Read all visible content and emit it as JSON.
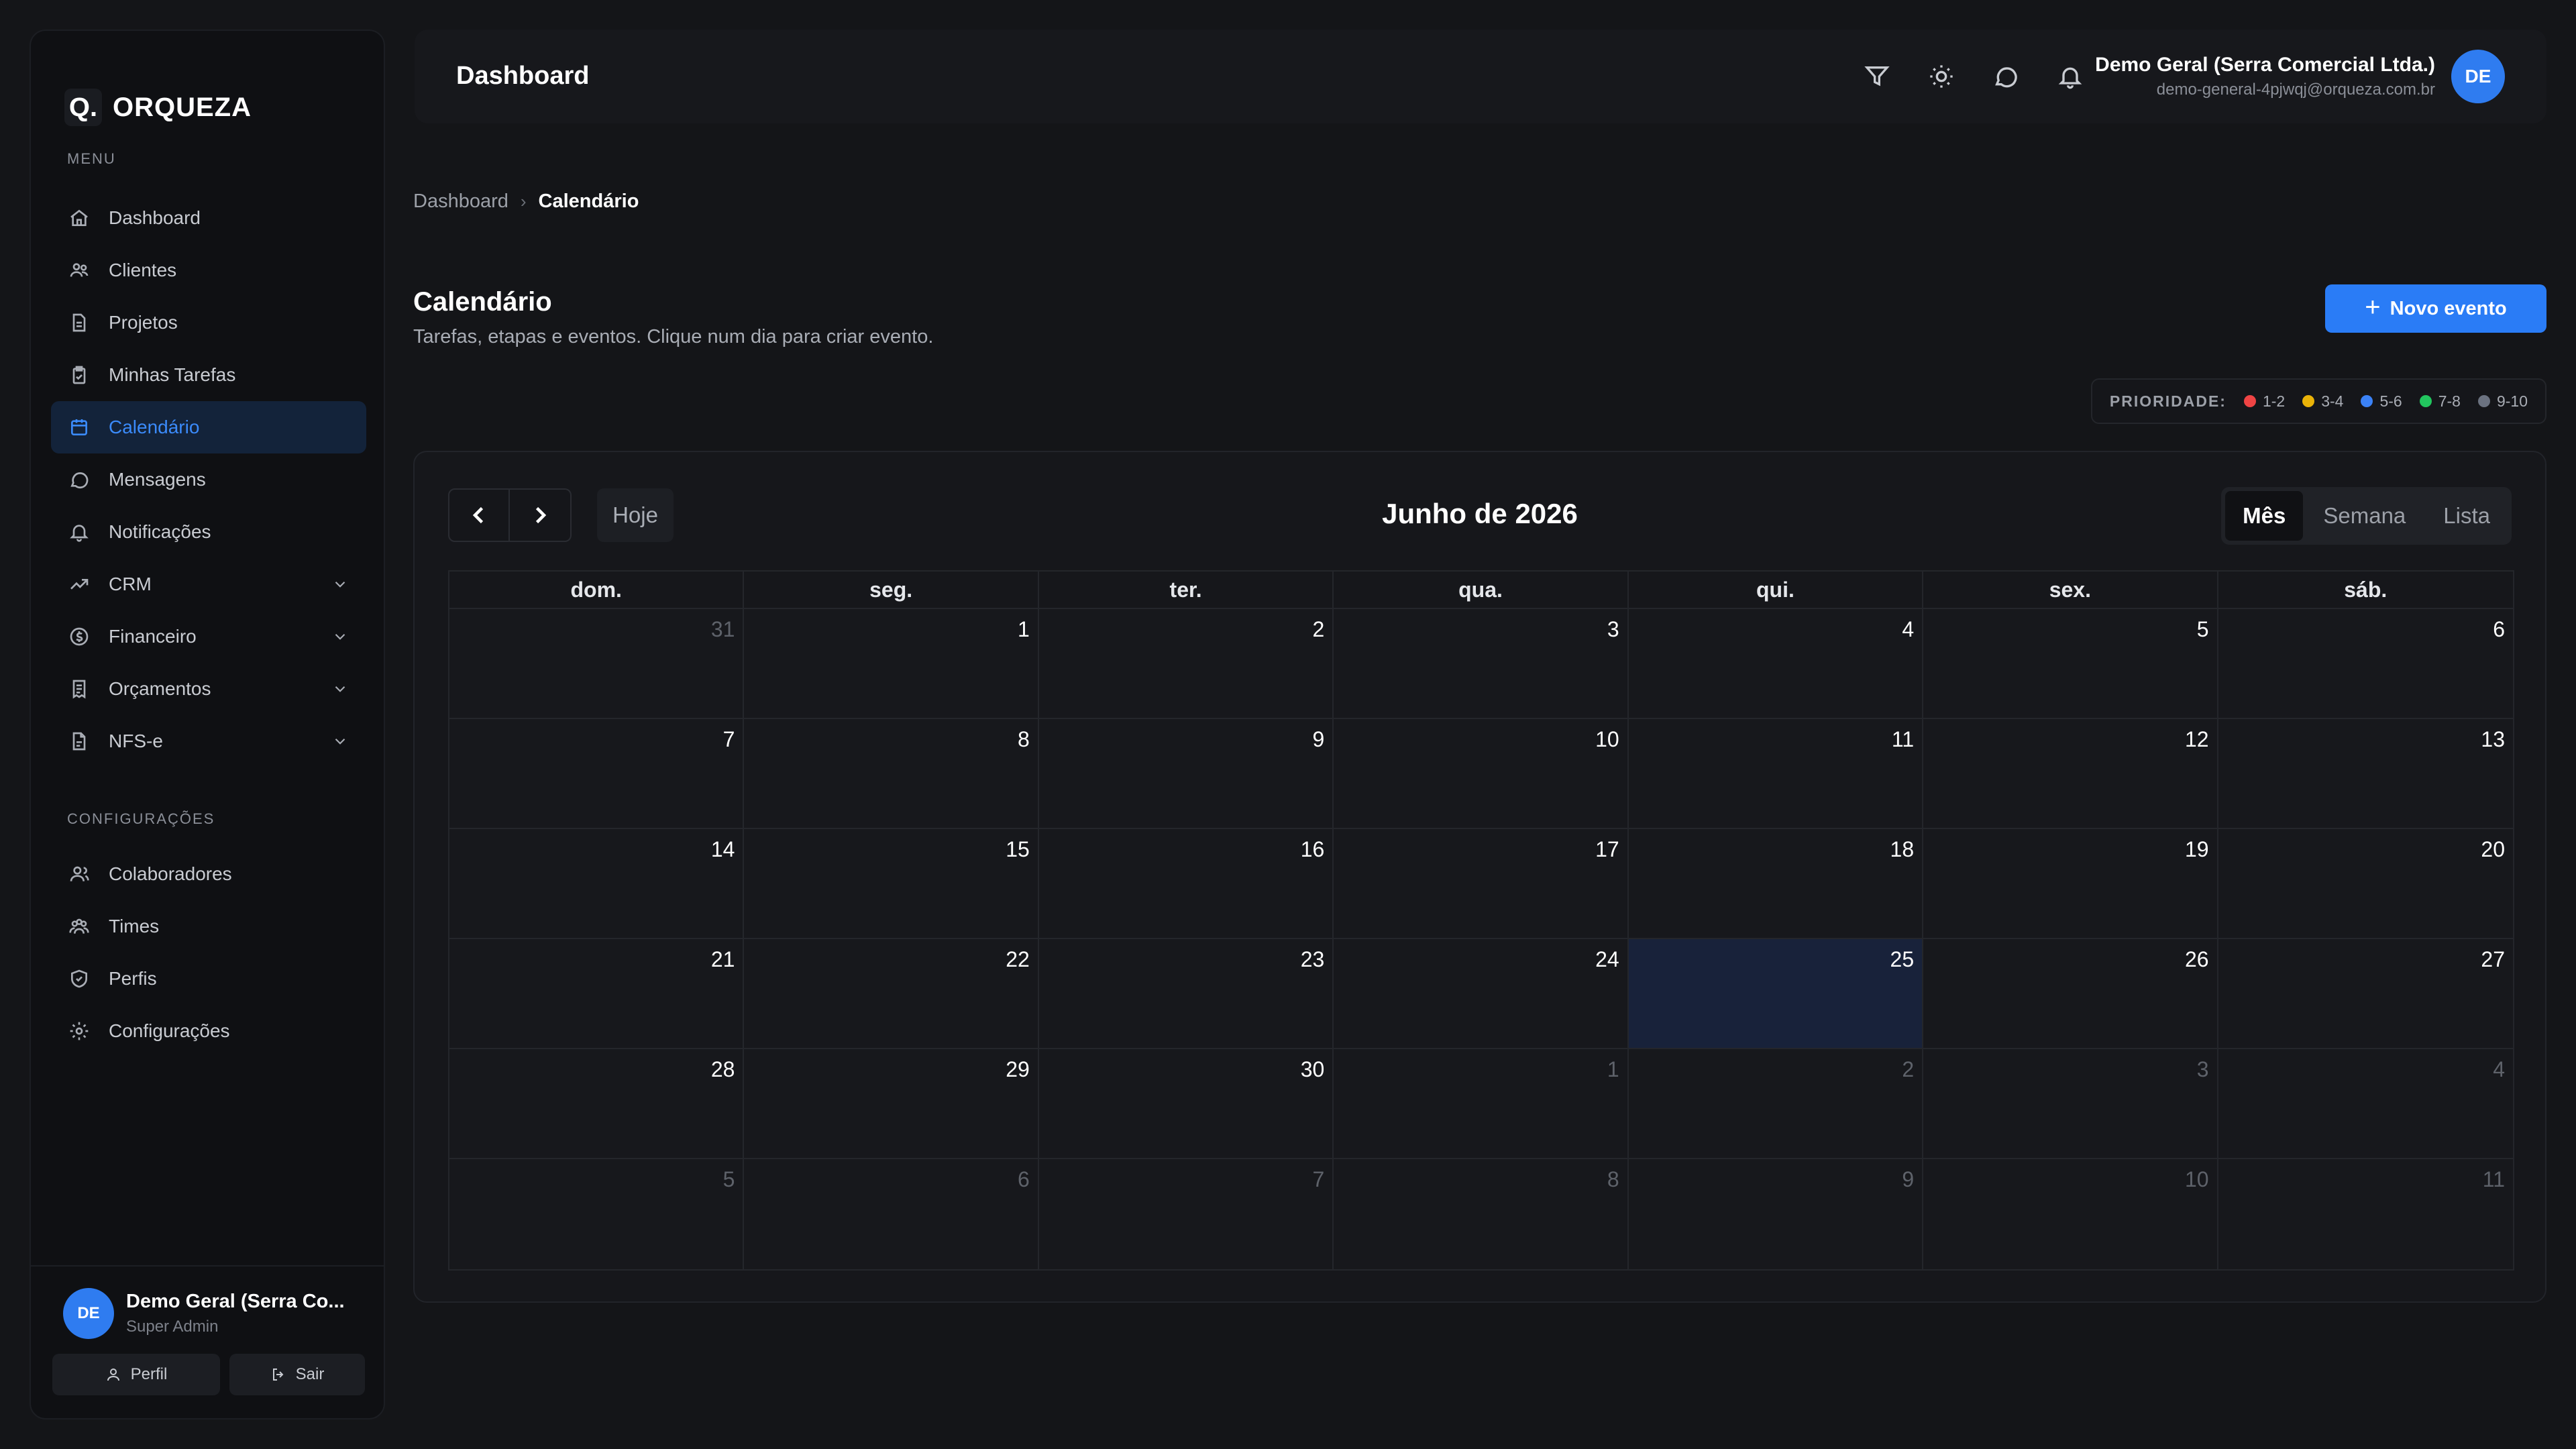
{
  "brand": {
    "mark": "Q.",
    "name": "ORQUEZA"
  },
  "sidebar": {
    "menu_label": "MENU",
    "config_label": "CONFIGURAÇÕES",
    "menu_items": [
      {
        "label": "Dashboard",
        "icon": "home-icon"
      },
      {
        "label": "Clientes",
        "icon": "users-icon"
      },
      {
        "label": "Projetos",
        "icon": "file-icon"
      },
      {
        "label": "Minhas Tarefas",
        "icon": "clipboard-icon"
      },
      {
        "label": "Calendário",
        "icon": "calendar-icon",
        "active": true
      },
      {
        "label": "Mensagens",
        "icon": "message-icon"
      },
      {
        "label": "Notificações",
        "icon": "bell-icon"
      },
      {
        "label": "CRM",
        "icon": "trend-icon",
        "expandable": true
      },
      {
        "label": "Financeiro",
        "icon": "dollar-icon",
        "expandable": true
      },
      {
        "label": "Orçamentos",
        "icon": "receipt-icon",
        "expandable": true
      },
      {
        "label": "NFS-e",
        "icon": "document-icon",
        "expandable": true
      }
    ],
    "config_items": [
      {
        "label": "Colaboradores",
        "icon": "user-group-icon"
      },
      {
        "label": "Times",
        "icon": "team-icon"
      },
      {
        "label": "Perfis",
        "icon": "shield-icon"
      },
      {
        "label": "Configurações",
        "icon": "gear-icon"
      }
    ],
    "user": {
      "initials": "DE",
      "name": "Demo Geral (Serra Co...",
      "role": "Super Admin"
    },
    "profile_btn": "Perfil",
    "logout_btn": "Sair"
  },
  "header": {
    "title": "Dashboard",
    "user_name": "Demo Geral (Serra Comercial Ltda.)",
    "user_email": "demo-general-4pjwqj@orqueza.com.br",
    "user_initials": "DE"
  },
  "breadcrumb": {
    "parent": "Dashboard",
    "current": "Calendário"
  },
  "page": {
    "title": "Calendário",
    "subtitle": "Tarefas, etapas e eventos. Clique num dia para criar evento.",
    "new_event": "Novo evento"
  },
  "priority": {
    "label": "PRIORIDADE:",
    "items": [
      {
        "label": "1-2",
        "color": "#ef4444"
      },
      {
        "label": "3-4",
        "color": "#eab308"
      },
      {
        "label": "5-6",
        "color": "#3b82f6"
      },
      {
        "label": "7-8",
        "color": "#22c55e"
      },
      {
        "label": "9-10",
        "color": "#6b7280"
      }
    ]
  },
  "calendar": {
    "today_btn": "Hoje",
    "month_title": "Junho de 2026",
    "views": [
      "Mês",
      "Semana",
      "Lista"
    ],
    "active_view": "Mês",
    "weekdays": [
      "dom.",
      "seg.",
      "ter.",
      "qua.",
      "qui.",
      "sex.",
      "sáb."
    ],
    "days": [
      {
        "n": "31",
        "muted": true
      },
      {
        "n": "1"
      },
      {
        "n": "2"
      },
      {
        "n": "3"
      },
      {
        "n": "4"
      },
      {
        "n": "5"
      },
      {
        "n": "6"
      },
      {
        "n": "7"
      },
      {
        "n": "8"
      },
      {
        "n": "9"
      },
      {
        "n": "10"
      },
      {
        "n": "11"
      },
      {
        "n": "12"
      },
      {
        "n": "13"
      },
      {
        "n": "14"
      },
      {
        "n": "15"
      },
      {
        "n": "16"
      },
      {
        "n": "17"
      },
      {
        "n": "18"
      },
      {
        "n": "19"
      },
      {
        "n": "20"
      },
      {
        "n": "21"
      },
      {
        "n": "22"
      },
      {
        "n": "23"
      },
      {
        "n": "24"
      },
      {
        "n": "25",
        "today": true
      },
      {
        "n": "26"
      },
      {
        "n": "27"
      },
      {
        "n": "28"
      },
      {
        "n": "29"
      },
      {
        "n": "30"
      },
      {
        "n": "1",
        "muted": true
      },
      {
        "n": "2",
        "muted": true
      },
      {
        "n": "3",
        "muted": true
      },
      {
        "n": "4",
        "muted": true
      },
      {
        "n": "5",
        "muted": true
      },
      {
        "n": "6",
        "muted": true
      },
      {
        "n": "7",
        "muted": true
      },
      {
        "n": "8",
        "muted": true
      },
      {
        "n": "9",
        "muted": true
      },
      {
        "n": "10",
        "muted": true
      },
      {
        "n": "11",
        "muted": true
      }
    ]
  }
}
